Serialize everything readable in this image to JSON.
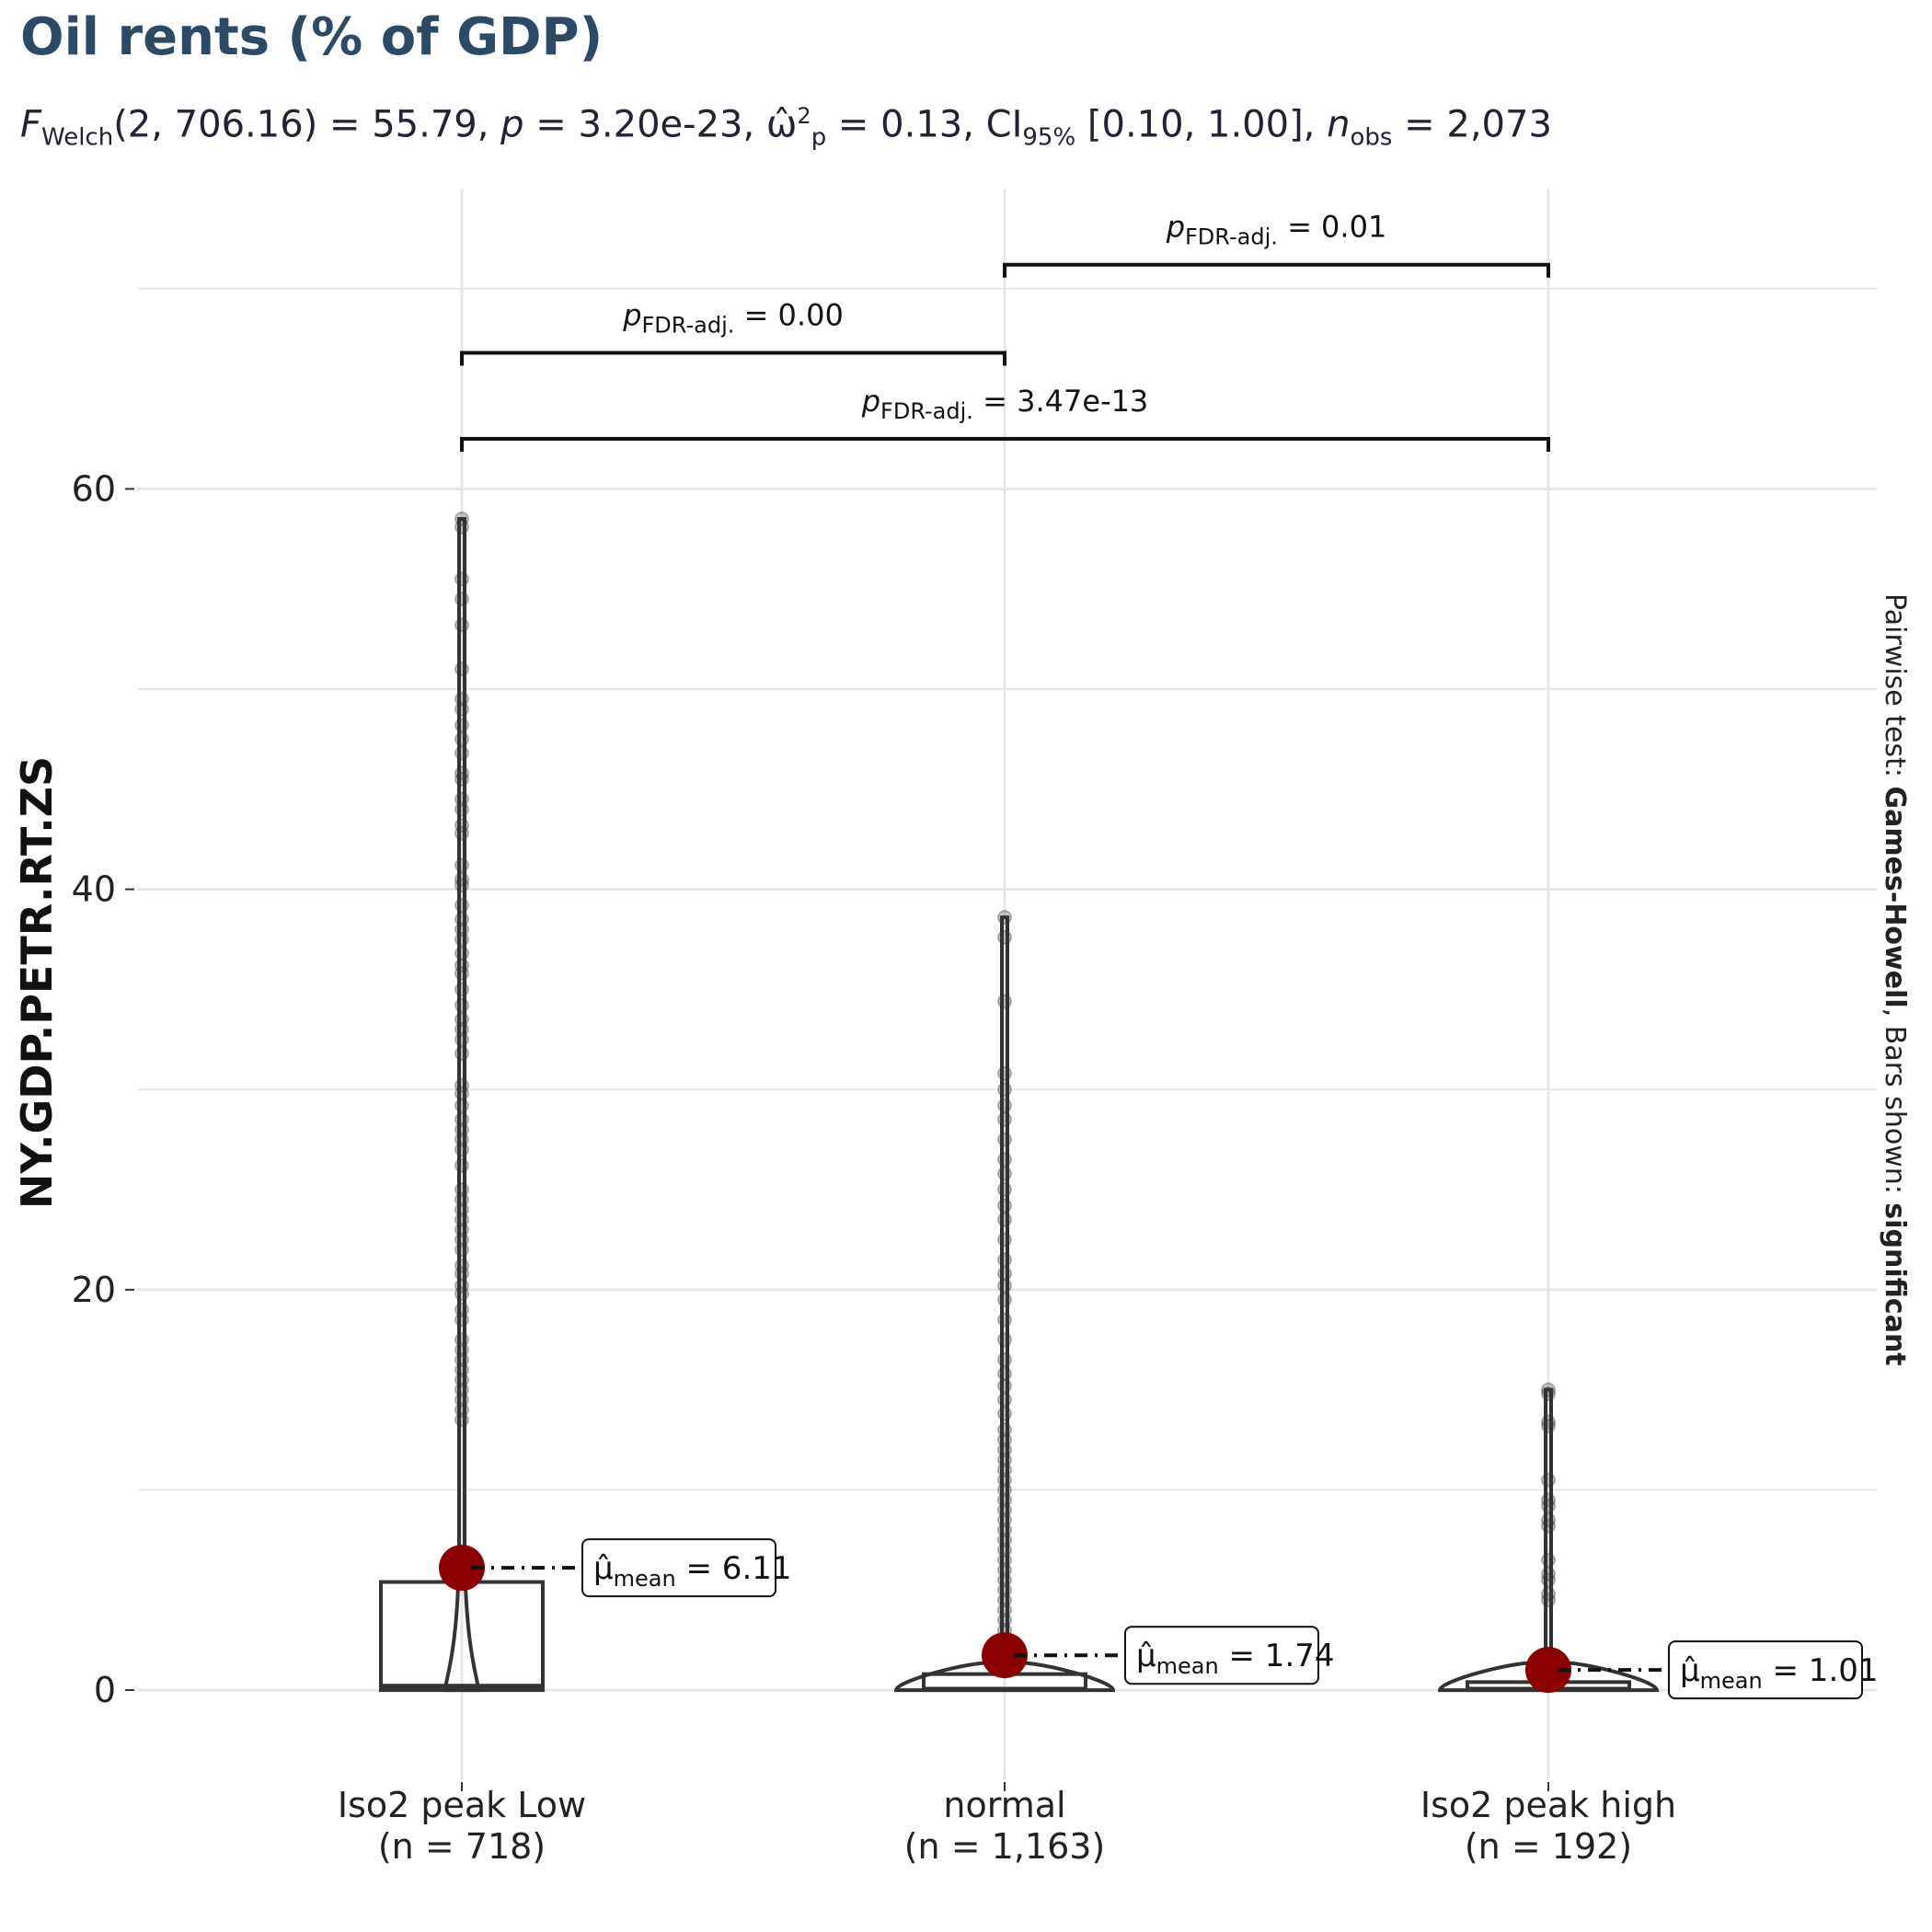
{
  "chart_data": {
    "type": "violin-box-scatter",
    "title": "Oil rents (% of GDP)",
    "subtitle": {
      "f_label": "F",
      "f_sub": "Welch",
      "f_args": "(2, 706.16) = 55.79, ",
      "p_label": "p",
      "p_value": " = 3.20e-23, ",
      "eff_label": "ω̂",
      "eff_sup": "2",
      "eff_sub": "p",
      "eff_value": " = 0.13, CI",
      "ci_sub": "95%",
      "ci_value": " [0.10, 1.00], ",
      "n_label": "n",
      "n_sub": "obs",
      "n_value": " = 2,073"
    },
    "ylabel": "NY.GDP.PETR.RT.ZS",
    "ylim": [
      -4.5,
      75
    ],
    "yticks": [
      0,
      20,
      40,
      60
    ],
    "ytick_labels": [
      "0",
      "20",
      "40",
      "60"
    ],
    "grid": true,
    "caption_prefix": "Pairwise test: ",
    "caption_bold1": "Games-Howell",
    "caption_mid": ", Bars shown: ",
    "caption_bold2": "significant",
    "mean_label": "mean",
    "mean_prefix": "μ̂",
    "groups": [
      {
        "name": "Iso2 peak  Low",
        "n_label": "(n = 718)",
        "mean": 6.11,
        "mean_text": "= 6.11",
        "box": {
          "q1": 0.0,
          "median": 0.2,
          "q3": 5.4
        },
        "violin_max": 58.5,
        "points": [
          58.5,
          58.1,
          55.5,
          54.5,
          53.2,
          51.0,
          49.5,
          49.0,
          48.2,
          47.5,
          46.8,
          45.8,
          45.5,
          44.5,
          44.0,
          43.2,
          42.8,
          41.2,
          40.5,
          40.2,
          39.2,
          38.5,
          38.0,
          37.5,
          36.8,
          36.2,
          35.8,
          35.0,
          34.2,
          33.5,
          33.0,
          32.5,
          31.8,
          30.2,
          29.8,
          29.2,
          28.5,
          28.0,
          27.5,
          27.0,
          26.2,
          25.0,
          24.5,
          24.0,
          23.5,
          23.0,
          22.5,
          22.0,
          21.2,
          20.8,
          20.2,
          19.8,
          19.0,
          18.5,
          17.5,
          17.0,
          16.5,
          16.0,
          15.5,
          15.0,
          14.5,
          14.0,
          13.5
        ]
      },
      {
        "name": "normal",
        "n_label": "(n = 1,163)",
        "mean": 1.74,
        "mean_text": "= 1.74",
        "box": {
          "q1": 0.0,
          "median": 0.05,
          "q3": 0.8
        },
        "violin_max": 38.6,
        "points": [
          38.6,
          37.6,
          34.4,
          30.8,
          30.0,
          29.2,
          28.5,
          27.5,
          26.5,
          25.8,
          25.0,
          24.2,
          23.5,
          22.5,
          21.5,
          20.8,
          20.2,
          19.5,
          18.5,
          17.5,
          16.5,
          15.8,
          15.2,
          14.5,
          13.8,
          13.0,
          12.5,
          12.0,
          11.5,
          11.0,
          10.5,
          10.0,
          9.5,
          9.0,
          8.5,
          8.0,
          7.5,
          7.0,
          6.5,
          6.0,
          5.5,
          5.0,
          4.5,
          4.0,
          3.5,
          3.0,
          2.5
        ]
      },
      {
        "name": "Iso2 peak  high",
        "n_label": "(n = 192)",
        "mean": 1.01,
        "mean_text": "= 1.01",
        "box": {
          "q1": 0.0,
          "median": 0.05,
          "q3": 0.4
        },
        "violin_max": 15.0,
        "points": [
          15.0,
          14.8,
          13.4,
          13.2,
          10.5,
          9.5,
          9.2,
          8.5,
          8.2,
          6.5,
          5.8,
          5.5,
          4.8,
          4.5
        ]
      }
    ],
    "comparisons": [
      {
        "from": 0,
        "to": 1,
        "level": 66.8,
        "label_p": "p",
        "label_sub": "FDR-adj.",
        "label_val": "= 0.00"
      },
      {
        "from": 1,
        "to": 2,
        "level": 71.2,
        "label_p": "p",
        "label_sub": "FDR-adj.",
        "label_val": "= 0.01"
      },
      {
        "from": 0,
        "to": 2,
        "level": 62.5,
        "label_p": "p",
        "label_sub": "FDR-adj.",
        "label_val": "= 3.47e-13"
      }
    ],
    "colors": {
      "title": "#2c4a66",
      "mean_point": "#8b0000",
      "points": "#333333",
      "grid": "#e6e6e6",
      "box": "#333333"
    }
  }
}
